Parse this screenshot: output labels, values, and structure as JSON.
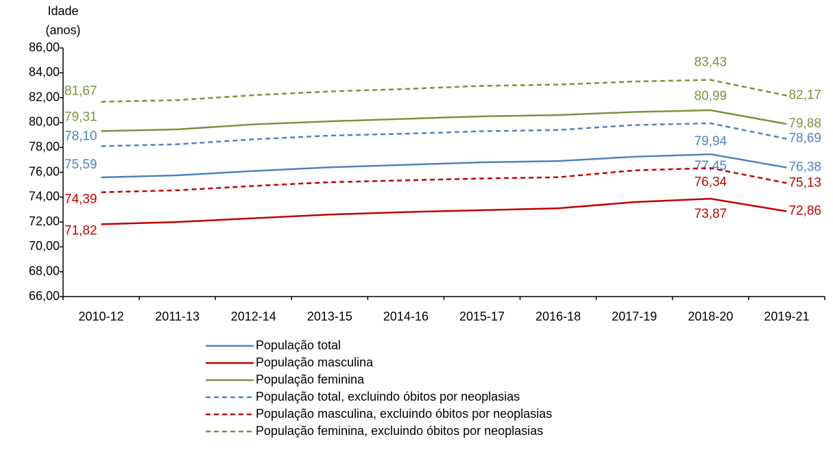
{
  "chart_data": {
    "type": "line",
    "ylabel": [
      "Idade",
      "(anos)"
    ],
    "categories": [
      "2010-12",
      "2011-13",
      "2012-14",
      "2013-15",
      "2014-16",
      "2015-17",
      "2016-18",
      "2017-19",
      "2018-20",
      "2019-21"
    ],
    "ylim": [
      66,
      86
    ],
    "yticks": [
      {
        "value": 66,
        "label": "66,00"
      },
      {
        "value": 68,
        "label": "68,00"
      },
      {
        "value": 70,
        "label": "70,00"
      },
      {
        "value": 72,
        "label": "72,00"
      },
      {
        "value": 74,
        "label": "74,00"
      },
      {
        "value": 76,
        "label": "76,00"
      },
      {
        "value": 78,
        "label": "78,00"
      },
      {
        "value": 80,
        "label": "80,00"
      },
      {
        "value": 82,
        "label": "82,00"
      },
      {
        "value": 84,
        "label": "84,00"
      },
      {
        "value": 86,
        "label": "86,00"
      }
    ],
    "series": [
      {
        "name": "População total",
        "color": "#4f81bd",
        "dash": false,
        "values": [
          75.59,
          75.75,
          76.1,
          76.4,
          76.6,
          76.8,
          76.9,
          77.25,
          77.45,
          76.38
        ],
        "value_labels": [
          "75,59",
          null,
          null,
          null,
          null,
          null,
          null,
          null,
          "77,45",
          "76,38"
        ]
      },
      {
        "name": "População masculina",
        "color": "#c00000",
        "dash": false,
        "values": [
          71.82,
          72.0,
          72.3,
          72.6,
          72.8,
          72.95,
          73.1,
          73.6,
          73.87,
          72.86
        ],
        "value_labels": [
          "71,82",
          null,
          null,
          null,
          null,
          null,
          null,
          null,
          "73,87",
          "72,86"
        ]
      },
      {
        "name": "População feminina",
        "color": "#77933c",
        "dash": false,
        "values": [
          79.31,
          79.45,
          79.85,
          80.1,
          80.3,
          80.5,
          80.6,
          80.85,
          80.99,
          79.88
        ],
        "value_labels": [
          "79,31",
          null,
          null,
          null,
          null,
          null,
          null,
          null,
          "80,99",
          "79,88"
        ]
      },
      {
        "name": "População total, excluindo óbitos por neoplasias",
        "color": "#4f81bd",
        "dash": true,
        "values": [
          78.1,
          78.25,
          78.65,
          78.95,
          79.1,
          79.3,
          79.4,
          79.8,
          79.94,
          78.69
        ],
        "value_labels": [
          "78,10",
          null,
          null,
          null,
          null,
          null,
          null,
          null,
          "79,94",
          "78,69"
        ]
      },
      {
        "name": "População masculina, excluindo óbitos por neoplasias",
        "color": "#c00000",
        "dash": true,
        "values": [
          74.39,
          74.55,
          74.9,
          75.2,
          75.35,
          75.5,
          75.6,
          76.15,
          76.34,
          75.13
        ],
        "value_labels": [
          "74,39",
          null,
          null,
          null,
          null,
          null,
          null,
          null,
          "76,34",
          "75,13"
        ]
      },
      {
        "name": "População feminina, excluindo óbitos por neoplasias",
        "color": "#77933c",
        "dash": true,
        "values": [
          81.67,
          81.8,
          82.2,
          82.5,
          82.7,
          82.95,
          83.05,
          83.3,
          83.43,
          82.17
        ],
        "value_labels": [
          "81,67",
          null,
          null,
          null,
          null,
          null,
          null,
          null,
          "83,43",
          "82,17"
        ]
      }
    ]
  }
}
